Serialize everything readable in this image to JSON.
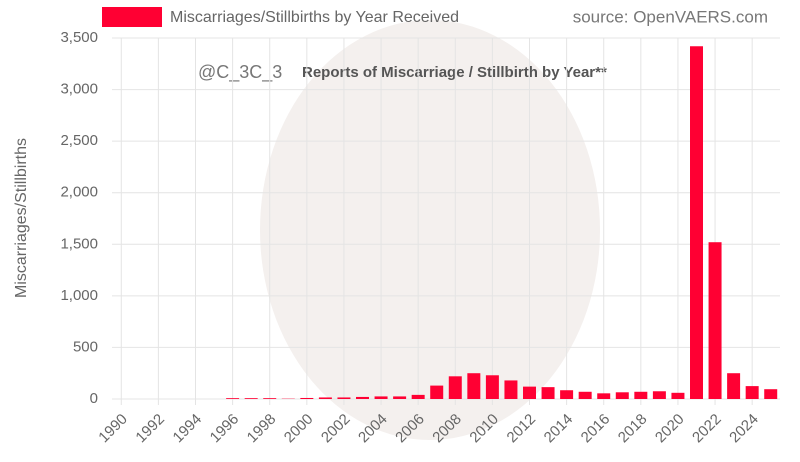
{
  "chart_data": {
    "type": "bar",
    "title": "Reports of Miscarriage / Stillbirth by Year**",
    "annotations": [
      "@C_3C_3",
      "source: OpenVAERS.com"
    ],
    "y_label": "Miscarriages/Stillbirths",
    "x": [
      1990,
      1991,
      1992,
      1993,
      1994,
      1995,
      1996,
      1997,
      1998,
      1999,
      2000,
      2001,
      2002,
      2003,
      2004,
      2005,
      2006,
      2007,
      2008,
      2009,
      2010,
      2011,
      2012,
      2013,
      2014,
      2015,
      2016,
      2017,
      2018,
      2019,
      2020,
      2021,
      2022,
      2023,
      2024,
      2025
    ],
    "series": [
      {
        "name": "Miscarriages/Stillbirths by Year Received",
        "color": "#ff0033",
        "values": [
          0,
          0,
          0,
          0,
          0,
          0,
          8,
          8,
          8,
          3,
          10,
          15,
          15,
          20,
          25,
          25,
          40,
          130,
          220,
          250,
          230,
          180,
          120,
          115,
          85,
          70,
          55,
          65,
          70,
          75,
          60,
          3420,
          1520,
          250,
          125,
          95
        ]
      }
    ],
    "xlim": [
      1989.5,
      2025.5
    ],
    "xticks": [
      1990,
      1992,
      1994,
      1996,
      1998,
      2000,
      2002,
      2004,
      2006,
      2008,
      2010,
      2012,
      2014,
      2016,
      2018,
      2020,
      2022,
      2024
    ],
    "ylim": [
      0,
      3500
    ],
    "yticks": [
      0,
      500,
      {
        "value": 1000,
        "label": "1,000"
      },
      {
        "value": 1500,
        "label": "1,500"
      },
      {
        "value": 2000,
        "label": "2,000"
      },
      {
        "value": 2500,
        "label": "2,500"
      },
      {
        "value": 3000,
        "label": "3,000"
      },
      {
        "value": 3500,
        "label": "3,500"
      }
    ],
    "grid": true
  }
}
